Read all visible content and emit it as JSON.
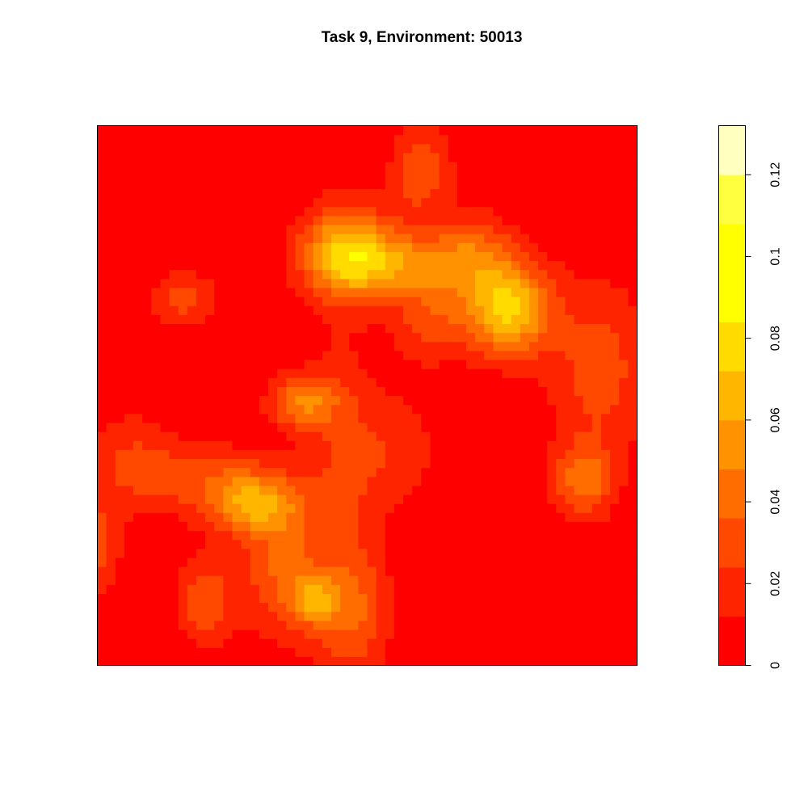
{
  "chart_data": {
    "type": "heatmap",
    "title": "Task 9, Environment: 50013",
    "xlabel": "",
    "ylabel": "",
    "grid": false,
    "axes_shown": false,
    "grid_size": [
      60,
      60
    ],
    "zlim": [
      0,
      0.132
    ],
    "color_levels": [
      {
        "from": 0.0,
        "to": 0.012,
        "color": "#FF0000"
      },
      {
        "from": 0.012,
        "to": 0.024,
        "color": "#FF2400"
      },
      {
        "from": 0.024,
        "to": 0.036,
        "color": "#FF4900"
      },
      {
        "from": 0.036,
        "to": 0.048,
        "color": "#FF6D00"
      },
      {
        "from": 0.048,
        "to": 0.06,
        "color": "#FF9200"
      },
      {
        "from": 0.06,
        "to": 0.072,
        "color": "#FFB600"
      },
      {
        "from": 0.072,
        "to": 0.084,
        "color": "#FFDB00"
      },
      {
        "from": 0.084,
        "to": 0.096,
        "color": "#FFFF00"
      },
      {
        "from": 0.096,
        "to": 0.108,
        "color": "#FFFF00"
      },
      {
        "from": 0.108,
        "to": 0.12,
        "color": "#FFFF40"
      },
      {
        "from": 0.12,
        "to": 0.132,
        "color": "#FFFFBF"
      }
    ],
    "colorbar": {
      "position": "right",
      "ticks": [
        0,
        0.02,
        0.04,
        0.06,
        0.08,
        0.1,
        0.12
      ],
      "tick_labels": [
        "0",
        "0.02",
        "0.04",
        "0.06",
        "0.08",
        "0.1",
        "0.12"
      ]
    },
    "field_peaks": [
      {
        "x": 0.76,
        "y": 0.66,
        "amplitude": 0.075,
        "sx": 0.055,
        "sy": 0.06
      },
      {
        "x": 0.46,
        "y": 0.77,
        "amplitude": 0.06,
        "sx": 0.06,
        "sy": 0.06
      },
      {
        "x": 0.58,
        "y": 0.74,
        "amplitude": 0.048,
        "sx": 0.1,
        "sy": 0.045
      },
      {
        "x": 0.62,
        "y": 0.63,
        "amplitude": 0.028,
        "sx": 0.05,
        "sy": 0.05
      },
      {
        "x": 0.6,
        "y": 0.92,
        "amplitude": 0.035,
        "sx": 0.04,
        "sy": 0.06
      },
      {
        "x": 0.7,
        "y": 0.78,
        "amplitude": 0.025,
        "sx": 0.05,
        "sy": 0.05
      },
      {
        "x": 0.38,
        "y": 0.49,
        "amplitude": 0.046,
        "sx": 0.045,
        "sy": 0.035
      },
      {
        "x": 0.29,
        "y": 0.3,
        "amplitude": 0.052,
        "sx": 0.06,
        "sy": 0.04
      },
      {
        "x": 0.2,
        "y": 0.35,
        "amplitude": 0.025,
        "sx": 0.09,
        "sy": 0.05
      },
      {
        "x": 0.34,
        "y": 0.18,
        "amplitude": 0.036,
        "sx": 0.05,
        "sy": 0.09
      },
      {
        "x": 0.4,
        "y": 0.12,
        "amplitude": 0.04,
        "sx": 0.03,
        "sy": 0.03
      },
      {
        "x": 0.2,
        "y": 0.12,
        "amplitude": 0.033,
        "sx": 0.04,
        "sy": 0.06
      },
      {
        "x": 0.16,
        "y": 0.68,
        "amplitude": 0.03,
        "sx": 0.045,
        "sy": 0.035
      },
      {
        "x": 0.06,
        "y": 0.38,
        "amplitude": 0.022,
        "sx": 0.06,
        "sy": 0.07
      },
      {
        "x": 0.0,
        "y": 0.22,
        "amplitude": 0.03,
        "sx": 0.03,
        "sy": 0.06
      },
      {
        "x": 0.9,
        "y": 0.34,
        "amplitude": 0.04,
        "sx": 0.04,
        "sy": 0.05
      },
      {
        "x": 0.93,
        "y": 0.55,
        "amplitude": 0.03,
        "sx": 0.07,
        "sy": 0.12
      },
      {
        "x": 0.45,
        "y": 0.3,
        "amplitude": 0.022,
        "sx": 0.05,
        "sy": 0.25
      },
      {
        "x": 0.55,
        "y": 0.4,
        "amplitude": 0.02,
        "sx": 0.06,
        "sy": 0.08
      },
      {
        "x": 0.48,
        "y": 0.1,
        "amplitude": 0.026,
        "sx": 0.05,
        "sy": 0.08
      }
    ]
  }
}
